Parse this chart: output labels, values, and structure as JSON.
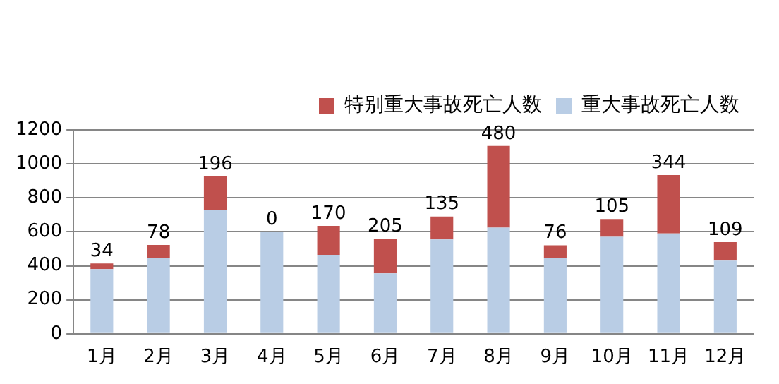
{
  "chart_data": {
    "type": "bar",
    "stacked": true,
    "categories": [
      "1月",
      "2月",
      "3月",
      "4月",
      "5月",
      "6月",
      "7月",
      "8月",
      "9月",
      "10月",
      "11月",
      "12月"
    ],
    "series": [
      {
        "name": "重大事故死亡人数",
        "color": "#b9cde5",
        "values": [
          380,
          445,
          730,
          600,
          465,
          355,
          555,
          625,
          445,
          570,
          590,
          430
        ]
      },
      {
        "name": "特别重大事故死亡人数",
        "color": "#c0504d",
        "values": [
          34,
          78,
          196,
          0,
          170,
          205,
          135,
          480,
          76,
          105,
          344,
          109
        ],
        "value_labels": [
          "34",
          "78",
          "196",
          "0",
          "170",
          "205",
          "135",
          "480",
          "76",
          "105",
          "344",
          "109"
        ]
      }
    ],
    "ylim": [
      0,
      1200
    ],
    "yticks": [
      0,
      200,
      400,
      600,
      800,
      1000,
      1200
    ],
    "grid": "y",
    "legend": "top right"
  }
}
